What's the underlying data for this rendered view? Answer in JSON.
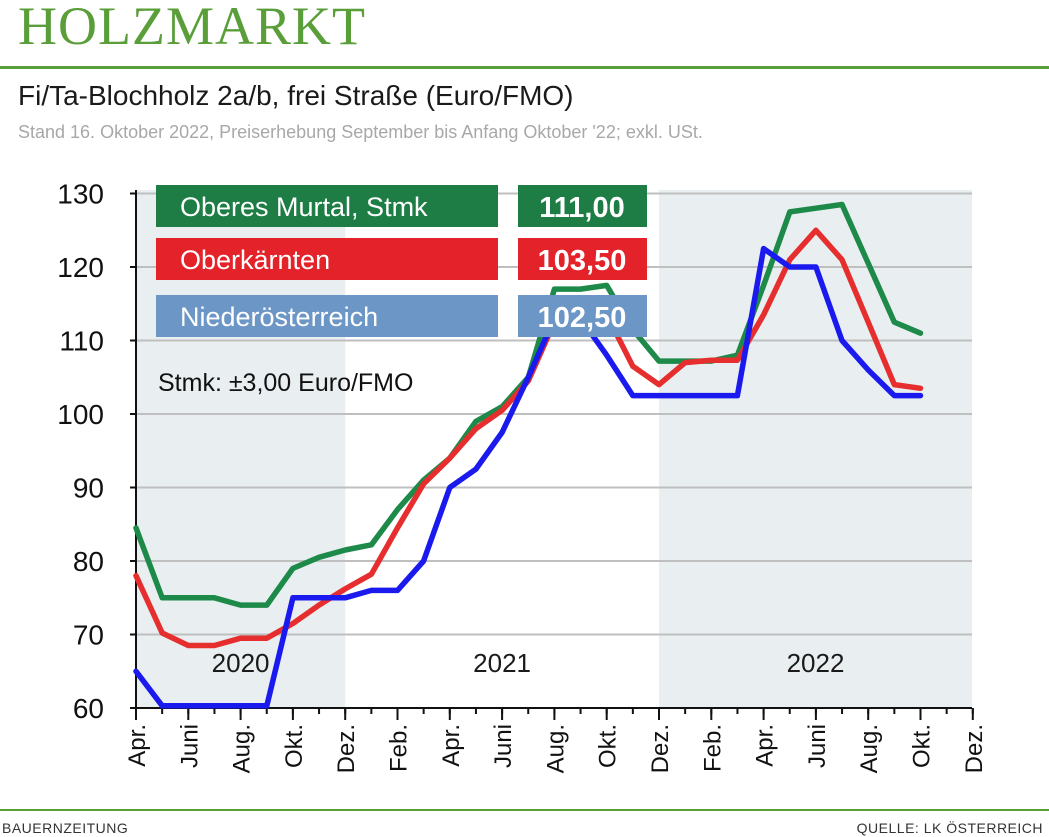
{
  "header": {
    "brand": "HOLZMARKT",
    "title": "Fi/Ta-Blochholz 2a/b, frei Straße (Euro/FMO)",
    "subtitle": "Stand 16. Oktober 2022, Preiserhebung September bis Anfang Oktober '22; exkl. USt."
  },
  "footer": {
    "left": "BAUERNZEITUNG",
    "right": "QUELLE: LK ÖSTERREICH"
  },
  "note": "Stmk: ±3,00 Euro/FMO",
  "chart_data": {
    "type": "line",
    "ylim": [
      60,
      130
    ],
    "yticks": [
      60,
      70,
      80,
      90,
      100,
      110,
      120,
      130
    ],
    "grid": true,
    "x": [
      "2020-04",
      "2020-05",
      "2020-06",
      "2020-07",
      "2020-08",
      "2020-09",
      "2020-10",
      "2020-11",
      "2020-12",
      "2021-01",
      "2021-02",
      "2021-03",
      "2021-04",
      "2021-05",
      "2021-06",
      "2021-07",
      "2021-08",
      "2021-09",
      "2021-10",
      "2021-11",
      "2021-12",
      "2022-01",
      "2022-02",
      "2022-03",
      "2022-04",
      "2022-05",
      "2022-06",
      "2022-07",
      "2022-08",
      "2022-09",
      "2022-10"
    ],
    "xticks": [
      {
        "label": "Apr.",
        "x": "2020-04"
      },
      {
        "label": "Juni",
        "x": "2020-06"
      },
      {
        "label": "Aug.",
        "x": "2020-08"
      },
      {
        "label": "Okt.",
        "x": "2020-10"
      },
      {
        "label": "Dez.",
        "x": "2020-12"
      },
      {
        "label": "Feb.",
        "x": "2021-02"
      },
      {
        "label": "Apr.",
        "x": "2021-04"
      },
      {
        "label": "Juni",
        "x": "2021-06"
      },
      {
        "label": "Aug.",
        "x": "2021-08"
      },
      {
        "label": "Okt.",
        "x": "2021-10"
      },
      {
        "label": "Dez.",
        "x": "2021-12"
      },
      {
        "label": "Feb.",
        "x": "2022-02"
      },
      {
        "label": "Apr.",
        "x": "2022-04"
      },
      {
        "label": "Juni",
        "x": "2022-06"
      },
      {
        "label": "Aug.",
        "x": "2022-08"
      },
      {
        "label": "Okt.",
        "x": "2022-10"
      },
      {
        "label": "Dez.",
        "x": "2022-12"
      }
    ],
    "year_bands": [
      {
        "label": "2020",
        "from": "2020-04",
        "to": "2020-12",
        "shaded": true
      },
      {
        "label": "2021",
        "from": "2020-12",
        "to": "2021-12",
        "shaded": false
      },
      {
        "label": "2022",
        "from": "2021-12",
        "to": "2022-12",
        "shaded": true
      }
    ],
    "series": [
      {
        "name": "Oberes Murtal, Stmk",
        "color": "#1e8a4a",
        "badge_color": "#1e7d45",
        "latest": "111,00",
        "values": [
          84.5,
          75,
          75,
          75,
          74,
          74,
          79,
          80.5,
          81.5,
          82.2,
          87,
          91,
          94,
          99,
          101,
          105,
          117,
          117,
          117.5,
          111.5,
          107.2,
          107.2,
          107.2,
          108,
          117.5,
          127.5,
          128,
          128.5,
          120.5,
          112.5,
          111
        ]
      },
      {
        "name": "Oberkärnten",
        "color": "#e62e2e",
        "badge_color": "#e3222a",
        "latest": "103,50",
        "values": [
          78,
          70.2,
          68.5,
          68.5,
          69.5,
          69.5,
          71.5,
          74,
          76.2,
          78.2,
          84.5,
          90.5,
          94,
          98,
          100.5,
          104.5,
          112.5,
          114.5,
          113.5,
          106.5,
          104,
          107,
          107.3,
          107.3,
          113.5,
          121,
          125,
          121,
          112.5,
          104,
          103.5
        ]
      },
      {
        "name": "Niederösterreich",
        "color": "#1a1aee",
        "badge_color": "#6b96c6",
        "latest": "102,50",
        "values": [
          65,
          60.3,
          60.3,
          60.3,
          60.3,
          60.3,
          75,
          75,
          75,
          76,
          76,
          80,
          90,
          92.5,
          97.5,
          105,
          113,
          113,
          108,
          102.5,
          102.5,
          102.5,
          102.5,
          102.5,
          122.5,
          120,
          120,
          110,
          106,
          102.5,
          102.5
        ]
      }
    ]
  }
}
